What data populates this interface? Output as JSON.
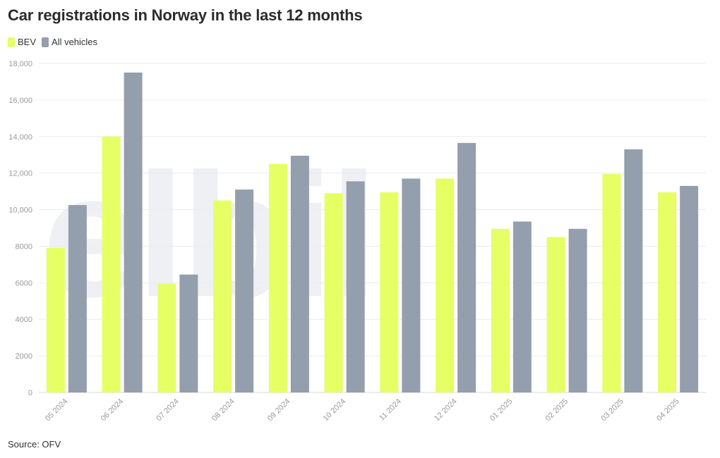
{
  "title": "Car registrations in Norway in the last 12 months",
  "source": "Source: OFV",
  "watermark": "elbil.no",
  "legend": [
    {
      "label": "BEV",
      "color": "#e5ff64"
    },
    {
      "label": "All vehicles",
      "color": "#949fad"
    }
  ],
  "chart_data": {
    "type": "bar",
    "title": "Car registrations in Norway in the last 12 months",
    "xlabel": "",
    "ylabel": "",
    "ylim": [
      0,
      18000
    ],
    "yticks": [
      0,
      2000,
      4000,
      6000,
      8000,
      10000,
      12000,
      14000,
      16000,
      18000
    ],
    "ytick_labels": [
      "0",
      "2000",
      "4000",
      "6000",
      "8000",
      "10,000",
      "12,000",
      "14,000",
      "16,000",
      "18,000"
    ],
    "grid": true,
    "legend_position": "top-left",
    "categories": [
      "05 2024",
      "06 2024",
      "07 2024",
      "08 2024",
      "09 2024",
      "10 2024",
      "11 2024",
      "12 2024",
      "01 2025",
      "02 2025",
      "03 2025",
      "04 2025"
    ],
    "series": [
      {
        "name": "BEV",
        "color": "#e5ff64",
        "values": [
          7900,
          14000,
          5950,
          10500,
          12500,
          10900,
          10950,
          11700,
          8950,
          8500,
          11950,
          10950
        ]
      },
      {
        "name": "All vehicles",
        "color": "#949fad",
        "values": [
          10250,
          17500,
          6450,
          11100,
          12950,
          11550,
          11700,
          13650,
          9350,
          8950,
          13300,
          11300
        ]
      }
    ]
  }
}
